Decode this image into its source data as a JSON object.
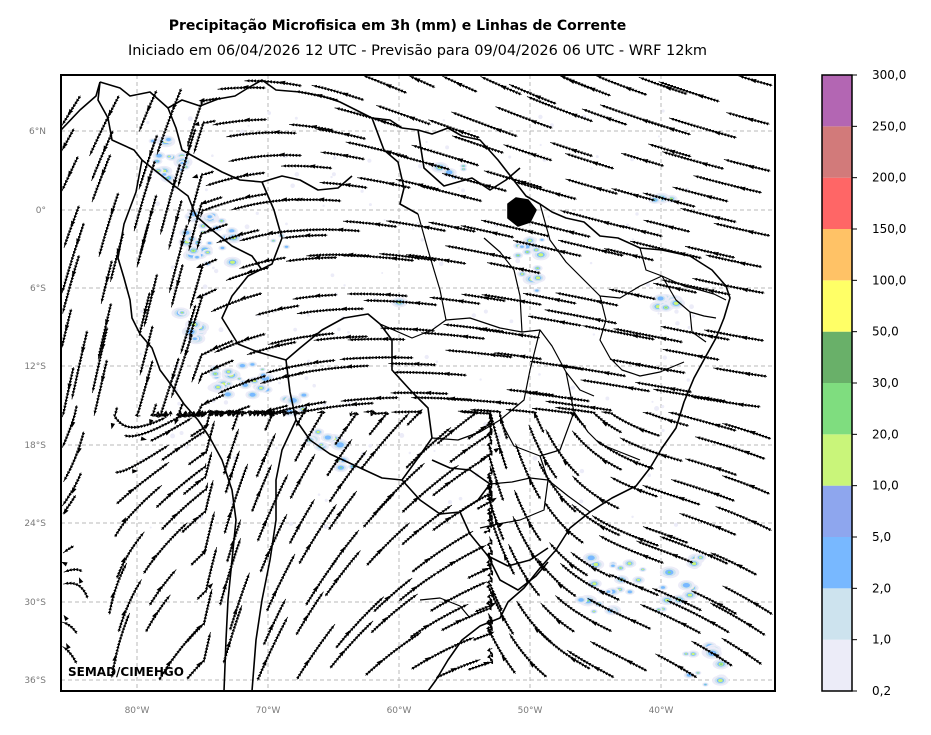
{
  "title": "Precipitação Microfisica em 3h (mm) e Linhas de Corrente",
  "subtitle": "Iniciado em 06/04/2026 12 UTC - Previsão para 09/04/2026 06 UTC - WRF 12km",
  "credit": "SEMAD/CIMEHGO",
  "lat_ticks": [
    "6°N",
    "0°",
    "6°S",
    "12°S",
    "18°S",
    "24°S",
    "30°S",
    "36°S"
  ],
  "lon_ticks": [
    "80°W",
    "70°W",
    "60°W",
    "50°W",
    "40°W"
  ],
  "colorbar": {
    "labels": [
      "0,2",
      "1,0",
      "2,0",
      "5,0",
      "10,0",
      "20,0",
      "30,0",
      "50,0",
      "100,0",
      "150,0",
      "200,0",
      "250,0",
      "300,0"
    ],
    "colors": [
      "#ececf8",
      "#cde3ee",
      "#78b8ff",
      "#8ea6ee",
      "#c9f57a",
      "#7fdd7f",
      "#69b069",
      "#ffff66",
      "#ffc266",
      "#ff6666",
      "#d27a7a",
      "#b366b3"
    ]
  },
  "precip_colors": {
    "trace": "#ececf8",
    "light": "#cde3ee",
    "moderate": "#78b8ff",
    "heavy": "#8ea6ee",
    "very_heavy": "#c9f57a",
    "intense": "#7fdd7f"
  }
}
